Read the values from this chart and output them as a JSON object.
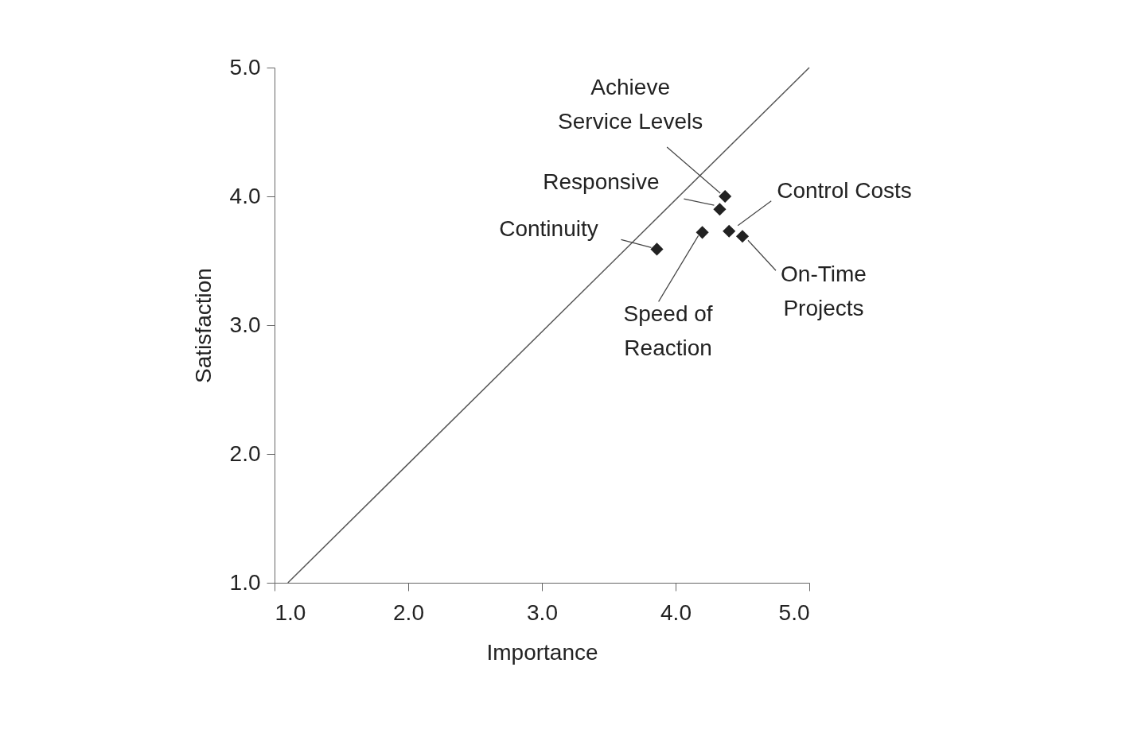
{
  "chart_data": {
    "type": "scatter",
    "xlabel": "Importance",
    "ylabel": "Satisfaction",
    "xlim": [
      1.0,
      5.0
    ],
    "ylim": [
      1.0,
      5.0
    ],
    "xticks": [
      {
        "value": 1,
        "label": "1.0"
      },
      {
        "value": 2,
        "label": "2.0"
      },
      {
        "value": 3,
        "label": "3.0"
      },
      {
        "value": 4,
        "label": "4.0"
      },
      {
        "value": 5,
        "label": "5.0"
      }
    ],
    "yticks": [
      {
        "value": 1,
        "label": "1.0"
      },
      {
        "value": 2,
        "label": "2.0"
      },
      {
        "value": 3,
        "label": "3.0"
      },
      {
        "value": 4,
        "label": "4.0"
      },
      {
        "value": 5,
        "label": "5.0"
      }
    ],
    "grid": false,
    "legend": false,
    "series": [
      {
        "type": "line",
        "x": [
          1.1,
          5.0
        ],
        "values": [
          1.0,
          5.0
        ],
        "color": "#555555",
        "line_style": "solid"
      },
      {
        "x": [
          3.86,
          4.2,
          4.33,
          4.37,
          4.4,
          4.5
        ],
        "values": [
          3.59,
          3.72,
          3.9,
          4.0,
          3.73,
          3.69
        ],
        "color": "#222222",
        "marker": "diamond"
      }
    ],
    "annotations": [
      {
        "text": "Continuity",
        "x": 3.86,
        "y": 3.59
      },
      {
        "text": "Speed of\nReaction",
        "x": 4.2,
        "y": 3.72
      },
      {
        "text": "Responsive",
        "x": 4.33,
        "y": 3.9
      },
      {
        "text": "Achieve\nService Levels",
        "x": 4.37,
        "y": 4.0
      },
      {
        "text": "Control Costs",
        "x": 4.4,
        "y": 3.73
      },
      {
        "text": "On-Time\nProjects",
        "x": 4.5,
        "y": 3.69
      }
    ]
  }
}
